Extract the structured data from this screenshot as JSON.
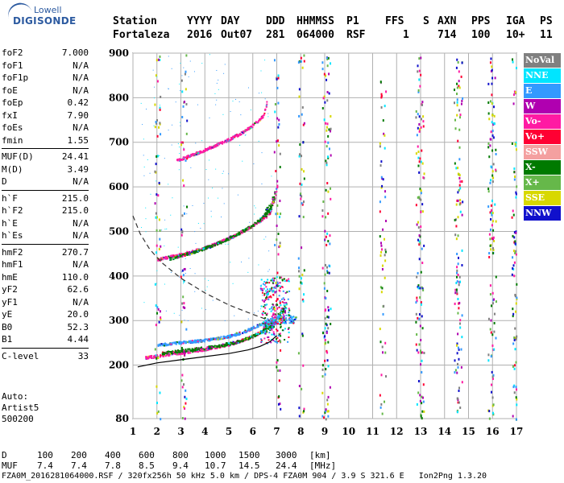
{
  "logo": {
    "line1": "Lowell",
    "line2": "DIGISONDE"
  },
  "header": {
    "row1": [
      "Station",
      "YYYY",
      "DAY",
      "DDD",
      "HHMMSS",
      "P1",
      "FFS",
      "S",
      "AXN",
      "PPS",
      "IGA",
      "PS"
    ],
    "row2": [
      "Fortaleza",
      "2016",
      "Out07",
      "281",
      "064000",
      "RSF",
      "1",
      "714",
      "100",
      "10+",
      "11"
    ]
  },
  "params": [
    {
      "label": "foF2",
      "value": "7.000"
    },
    {
      "label": "foF1",
      "value": "N/A"
    },
    {
      "label": "foF1p",
      "value": "N/A"
    },
    {
      "label": "foE",
      "value": "N/A"
    },
    {
      "label": "foEp",
      "value": "0.42"
    },
    {
      "label": "fxI",
      "value": "7.90"
    },
    {
      "label": "foEs",
      "value": "N/A"
    },
    {
      "label": "fmin",
      "value": "1.55"
    },
    {
      "sep": true
    },
    {
      "label": "MUF(D)",
      "value": "24.41"
    },
    {
      "label": "M(D)",
      "value": "3.49"
    },
    {
      "label": "D",
      "value": "N/A"
    },
    {
      "sep": true
    },
    {
      "label": "h`F",
      "value": "215.0"
    },
    {
      "label": "h`F2",
      "value": "215.0"
    },
    {
      "label": "h`E",
      "value": "N/A"
    },
    {
      "label": "h`Es",
      "value": "N/A"
    },
    {
      "sep": true
    },
    {
      "label": "hmF2",
      "value": "270.7"
    },
    {
      "label": "hmF1",
      "value": "N/A"
    },
    {
      "label": "hmE",
      "value": "110.0"
    },
    {
      "label": "yF2",
      "value": "62.6"
    },
    {
      "label": "yF1",
      "value": "N/A"
    },
    {
      "label": "yE",
      "value": "20.0"
    },
    {
      "label": "B0",
      "value": "52.3"
    },
    {
      "label": "B1",
      "value": "4.44"
    },
    {
      "sep": true
    },
    {
      "label": "C-level",
      "value": "33"
    }
  ],
  "auto": {
    "line1": "Auto:",
    "line2": "Artist5",
    "line3": "500200"
  },
  "legend": [
    {
      "label": "NoVal",
      "color": "#808080"
    },
    {
      "label": "NNE",
      "color": "#00e5ff"
    },
    {
      "label": "E",
      "color": "#3399ff"
    },
    {
      "label": "W",
      "color": "#b000b0"
    },
    {
      "label": "Vo-",
      "color": "#ff1aa3"
    },
    {
      "label": "Vo+",
      "color": "#ff0033"
    },
    {
      "label": "SSW",
      "color": "#f4a0a0"
    },
    {
      "label": "X-",
      "color": "#007a00"
    },
    {
      "label": "X+",
      "color": "#66b84a"
    },
    {
      "label": "SSE",
      "color": "#d8d800"
    },
    {
      "label": "NNW",
      "color": "#1010cc"
    }
  ],
  "footer": {
    "row_d_label": "D",
    "row_d": [
      "100",
      "200",
      "400",
      "600",
      "800",
      "1000",
      "1500",
      "3000",
      "[km]"
    ],
    "row_muf_label": "MUF",
    "row_muf": [
      "7.4",
      "7.4",
      "7.8",
      "8.5",
      "9.4",
      "10.7",
      "14.5",
      "24.4",
      "[MHz]"
    ],
    "info": "FZA0M_2016281064000.RSF / 320fx256h 50 kHz 5.0 km / DPS-4 FZA0M 904 / 3.9 S 321.6 E   Ion2Png 1.3.20"
  },
  "chart_data": {
    "type": "scatter",
    "x_ticks": [
      1,
      2,
      3,
      4,
      5,
      6,
      7,
      8,
      9,
      10,
      11,
      12,
      13,
      14,
      15,
      16,
      17
    ],
    "y_ticks": [
      80,
      200,
      300,
      400,
      500,
      600,
      700,
      800,
      900
    ],
    "xlim": [
      1,
      17
    ],
    "ylim": [
      80,
      900
    ],
    "grid": true,
    "legend_placement": "right",
    "traces": [
      {
        "name": "F2 O-trace",
        "color": "#ff1aa3",
        "x": [
          1.5,
          2.0,
          2.5,
          3.0,
          3.5,
          4.0,
          4.5,
          5.0,
          5.5,
          6.0,
          6.3,
          6.6,
          6.8,
          6.95,
          7.0
        ],
        "y": [
          218,
          222,
          226,
          229,
          233,
          237,
          242,
          248,
          256,
          266,
          276,
          290,
          305,
          330,
          360
        ]
      },
      {
        "name": "F2 X-trace",
        "color": "#007a00",
        "x": [
          2.2,
          2.8,
          3.4,
          4.0,
          4.6,
          5.2,
          5.8,
          6.3,
          6.8,
          7.2,
          7.4
        ],
        "y": [
          228,
          232,
          236,
          240,
          245,
          252,
          262,
          275,
          292,
          315,
          340
        ]
      },
      {
        "name": "NNE/E spread",
        "color": "#3399ff",
        "x": [
          2.0,
          2.6,
          3.2,
          3.8,
          4.4,
          5.0,
          5.6,
          6.2,
          6.8,
          7.4,
          7.8
        ],
        "y": [
          246,
          250,
          253,
          256,
          260,
          266,
          276,
          290,
          300,
          305,
          302
        ]
      },
      {
        "name": "2F2 O",
        "color": "#ff1aa3",
        "x": [
          2.0,
          2.5,
          3.0,
          3.5,
          4.0,
          4.5,
          5.0,
          5.5,
          6.0,
          6.4,
          6.7,
          6.9,
          7.0
        ],
        "y": [
          438,
          444,
          450,
          457,
          465,
          475,
          487,
          500,
          515,
          530,
          550,
          575,
          610
        ]
      },
      {
        "name": "2F2 X",
        "color": "#007a00",
        "x": [
          2.5,
          3.0,
          3.5,
          4.0,
          4.5,
          5.0,
          5.5,
          6.0,
          6.4,
          6.7,
          6.9
        ],
        "y": [
          440,
          447,
          455,
          464,
          474,
          486,
          500,
          516,
          534,
          556,
          585
        ]
      },
      {
        "name": "3F2",
        "color": "#ff1aa3",
        "x": [
          2.8,
          3.2,
          3.8,
          4.4,
          5.0,
          5.5,
          6.0,
          6.4,
          6.6
        ],
        "y": [
          660,
          668,
          680,
          694,
          708,
          722,
          740,
          760,
          790
        ]
      }
    ],
    "profile_curve": {
      "color": "#000000",
      "x": [
        1.2,
        2.0,
        3.0,
        4.0,
        5.0,
        5.8,
        6.3,
        6.7,
        7.0
      ],
      "y": [
        196,
        205,
        212,
        219,
        226,
        234,
        242,
        252,
        266
      ]
    },
    "dashed_curve": {
      "color": "#333333",
      "x": [
        1.0,
        1.3,
        1.7,
        2.2,
        3.0,
        4.0,
        5.0,
        5.8,
        6.3,
        6.7
      ],
      "y": [
        535,
        495,
        460,
        430,
        395,
        362,
        335,
        318,
        308,
        300
      ]
    }
  }
}
